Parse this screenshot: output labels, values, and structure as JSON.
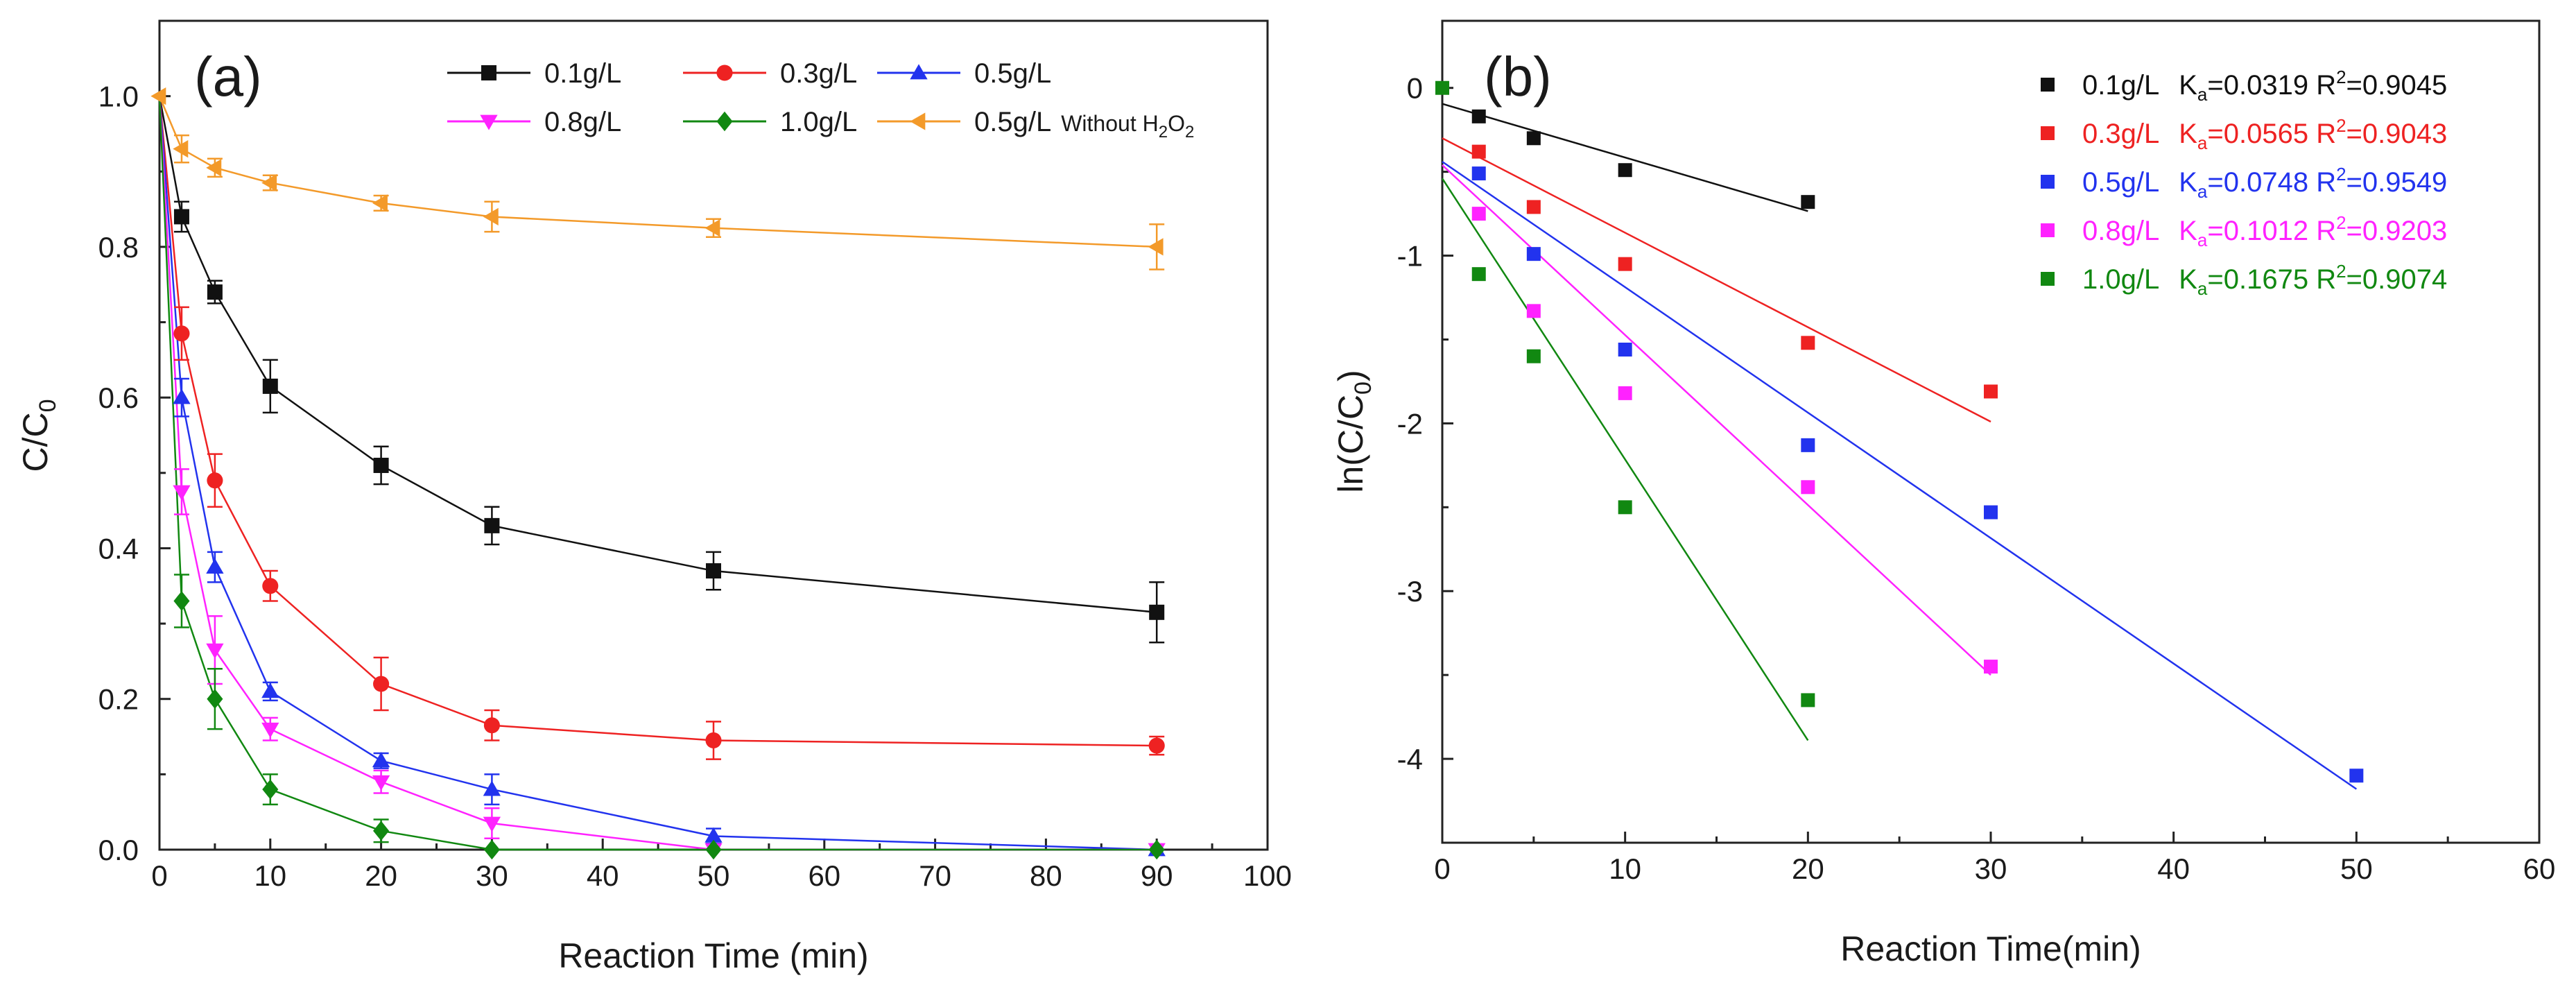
{
  "chart_data": [
    {
      "panel_label": "(a)",
      "type": "line",
      "xlabel": "Reaction Time (min)",
      "ylabel": {
        "main": "C/C",
        "sub": "0"
      },
      "xlim": [
        0,
        100
      ],
      "ylim": [
        0,
        1.1
      ],
      "xticks": [
        0,
        10,
        20,
        30,
        40,
        50,
        60,
        70,
        80,
        90,
        100
      ],
      "yticks": [
        0.0,
        0.2,
        0.4,
        0.6,
        0.8,
        1.0
      ],
      "ytick_labels": [
        "0.0",
        "0.2",
        "0.4",
        "0.6",
        "0.8",
        "1.0"
      ],
      "x": [
        0,
        2,
        5,
        10,
        20,
        30,
        50,
        90
      ],
      "legend_position": "top-right",
      "series": [
        {
          "name": "0.1g/L",
          "color": "#111111",
          "marker": "square",
          "values": [
            1.0,
            0.84,
            0.74,
            0.615,
            0.51,
            0.43,
            0.37,
            0.315
          ],
          "errors": [
            0,
            0.02,
            0.015,
            0.035,
            0.025,
            0.025,
            0.025,
            0.04
          ]
        },
        {
          "name": "0.3g/L",
          "color": "#ee2222",
          "marker": "circle",
          "values": [
            1.0,
            0.685,
            0.49,
            0.35,
            0.22,
            0.165,
            0.145,
            0.138
          ],
          "errors": [
            0,
            0.035,
            0.035,
            0.02,
            0.035,
            0.02,
            0.025,
            0.012
          ]
        },
        {
          "name": "0.5g/L",
          "color": "#2233ee",
          "marker": "triangle-up",
          "values": [
            1.0,
            0.6,
            0.375,
            0.21,
            0.118,
            0.08,
            0.018,
            0.0
          ],
          "errors": [
            0,
            0.025,
            0.02,
            0.012,
            0.01,
            0.02,
            0.01,
            0
          ]
        },
        {
          "name": "0.8g/L",
          "color": "#ff22ff",
          "marker": "triangle-down",
          "values": [
            1.0,
            0.475,
            0.265,
            0.16,
            0.09,
            0.035,
            0.0,
            0.0
          ],
          "errors": [
            0,
            0.03,
            0.045,
            0.015,
            0.015,
            0.02,
            0,
            0
          ]
        },
        {
          "name": "1.0g/L",
          "color": "#118811",
          "marker": "diamond",
          "values": [
            1.0,
            0.33,
            0.2,
            0.08,
            0.025,
            0.0,
            0.0,
            0.0
          ],
          "errors": [
            0,
            0.035,
            0.04,
            0.02,
            0.015,
            0,
            0,
            0
          ]
        },
        {
          "name": "0.5g/L",
          "name_suffix": "Without H",
          "name_sub1": "2",
          "name_mid": "O",
          "name_sub2": "2",
          "color": "#f39a2a",
          "marker": "triangle-left",
          "values": [
            1.0,
            0.93,
            0.905,
            0.885,
            0.858,
            0.84,
            0.825,
            0.8
          ],
          "errors": [
            0,
            0.018,
            0.012,
            0.01,
            0.01,
            0.02,
            0.012,
            0.03
          ]
        }
      ]
    },
    {
      "panel_label": "(b)",
      "type": "scatter",
      "xlabel": "Reaction Time(min)",
      "ylabel": {
        "main": "ln(C/C",
        "sub": "0",
        "close": ")"
      },
      "xlim": [
        0,
        60
      ],
      "ylim": [
        -4.5,
        0.4
      ],
      "xticks": [
        0,
        10,
        20,
        30,
        40,
        50,
        60
      ],
      "yticks": [
        0,
        -1,
        -2,
        -3,
        -4
      ],
      "legend_position": "top-right",
      "shared_point": {
        "x": 0,
        "y": 0,
        "color": "#118811"
      },
      "series": [
        {
          "name": "0.1g/L",
          "k": "0.0319",
          "r2": "0.9045",
          "color": "#111111",
          "x": [
            2,
            5,
            10,
            20
          ],
          "y": [
            -0.17,
            -0.3,
            -0.49,
            -0.68
          ],
          "fit": {
            "x": [
              0,
              20
            ],
            "y": [
              -0.095,
              -0.735
            ]
          }
        },
        {
          "name": "0.3g/L",
          "k": "0.0565",
          "r2": "0.9043",
          "color": "#ee2222",
          "x": [
            2,
            5,
            10,
            20,
            30
          ],
          "y": [
            -0.38,
            -0.71,
            -1.05,
            -1.52,
            -1.81
          ],
          "fit": {
            "x": [
              0,
              30
            ],
            "y": [
              -0.3,
              -1.99
            ]
          }
        },
        {
          "name": "0.5g/L",
          "k": "0.0748",
          "r2": "0.9549",
          "color": "#2233ee",
          "x": [
            2,
            5,
            10,
            20,
            30,
            50
          ],
          "y": [
            -0.51,
            -0.99,
            -1.56,
            -2.13,
            -2.53,
            -4.1
          ],
          "fit": {
            "x": [
              0,
              50
            ],
            "y": [
              -0.44,
              -4.18
            ]
          }
        },
        {
          "name": "0.8g/L",
          "k": "0.1012",
          "r2": "0.9203",
          "color": "#ff22ff",
          "x": [
            2,
            5,
            10,
            20,
            30
          ],
          "y": [
            -0.75,
            -1.33,
            -1.82,
            -2.38,
            -3.45
          ],
          "fit": {
            "x": [
              0,
              30
            ],
            "y": [
              -0.46,
              -3.5
            ]
          }
        },
        {
          "name": "1.0g/L",
          "k": "0.1675",
          "r2": "0.9074",
          "color": "#118811",
          "x": [
            2,
            5,
            10,
            20
          ],
          "y": [
            -1.11,
            -1.6,
            -2.5,
            -3.65
          ],
          "fit": {
            "x": [
              0,
              20
            ],
            "y": [
              -0.54,
              -3.89
            ]
          }
        }
      ]
    }
  ]
}
